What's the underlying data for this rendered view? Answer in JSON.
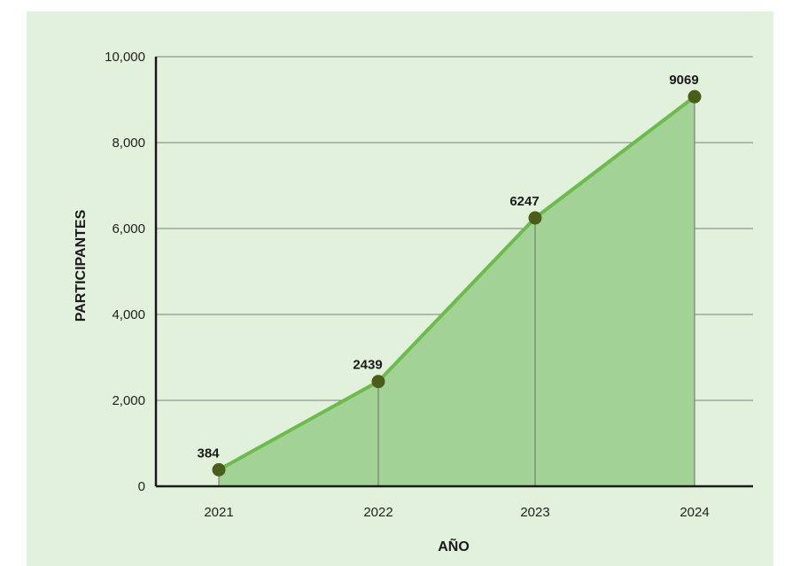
{
  "chart_data": {
    "type": "area",
    "xlabel": "AÑO",
    "ylabel": "PARTICIPANTES",
    "categories": [
      "2021",
      "2022",
      "2023",
      "2024"
    ],
    "series": [
      {
        "values": [
          384,
          2439,
          6247,
          9069
        ]
      }
    ],
    "ylim": [
      0,
      10000
    ],
    "y_ticks": [
      "0",
      "2,000",
      "4,000",
      "6,000",
      "8,000",
      "10,000"
    ],
    "grid": true,
    "colors": {
      "background": "#e2f1dc",
      "area_fill": "#a3d296",
      "line": "#6cbb4c",
      "marker": "#4a5e1a"
    }
  }
}
